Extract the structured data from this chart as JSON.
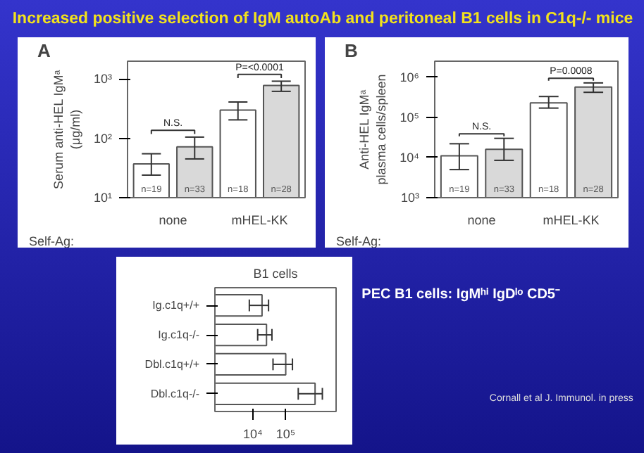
{
  "chart_data": [
    {
      "type": "other",
      "title": "Increased positive selection of IgM autoAb and peritoneal B1 cells in C1q-/- mice",
      "annotations": [
        "PEC B1 cells: IgMʰⁱ IgDˡᵒ CD5⁻",
        "Cornall et al J. Immunol. in press"
      ]
    },
    {
      "type": "bar",
      "ylabel": "Serum anti-HEL IgMᵃ\n(μg/ml)",
      "categories": [
        null,
        null,
        null,
        null
      ],
      "values": [
        37,
        72,
        300,
        780
      ],
      "errors": [
        [
          24,
          55
        ],
        [
          45,
          105
        ],
        [
          205,
          410
        ],
        [
          620,
          920
        ]
      ],
      "colors": [
        "#ffffff",
        "#d9d9d9",
        "#ffffff",
        "#d9d9d9"
      ],
      "log": true,
      "ylim": [
        10,
        2000
      ],
      "yticks": [
        {
          "value": 10,
          "label": "10¹"
        },
        {
          "value": 100,
          "label": "10²"
        },
        {
          "value": 1000,
          "label": "10³"
        }
      ],
      "annotations": [
        "N.S.",
        "P=<0.0001",
        "n=19",
        "n=33",
        "n=18",
        "n=28",
        "Self-Ag:",
        "none",
        "mHEL-KK",
        "A"
      ]
    },
    {
      "type": "bar",
      "ylabel": "Anti-HEL IgMᵃ\nplasma cells/spleen",
      "categories": [
        null,
        null,
        null,
        null
      ],
      "values": [
        11000,
        16000,
        230000,
        570000
      ],
      "errors": [
        [
          5000,
          22000
        ],
        [
          8500,
          30000
        ],
        [
          170000,
          330000
        ],
        [
          420000,
          720000
        ]
      ],
      "colors": [
        "#ffffff",
        "#d9d9d9",
        "#ffffff",
        "#d9d9d9"
      ],
      "log": true,
      "ylim": [
        1000,
        2500000
      ],
      "yticks": [
        {
          "value": 1000,
          "label": "10³"
        },
        {
          "value": 10000,
          "label": "10⁴"
        },
        {
          "value": 100000,
          "label": "10⁵"
        },
        {
          "value": 1000000,
          "label": "10⁶"
        }
      ],
      "annotations": [
        "N.S.",
        "P=0.0008",
        "n=19",
        "n=33",
        "n=18",
        "n=28",
        "Self-Ag:",
        "none",
        "mHEL-KK",
        "B"
      ]
    },
    {
      "type": "bar",
      "orientation": "horizontal",
      "title": "B1 cells",
      "categories": [
        "Ig.c1q+/+",
        "Ig.c1q-/-",
        "Dbl.c1q+/+",
        "Dbl.c1q-/-"
      ],
      "values": [
        19000,
        26000,
        100000,
        780000
      ],
      "errors": [
        [
          7800,
          30000
        ],
        [
          14000,
          38000
        ],
        [
          41000,
          160000
        ],
        [
          240000,
          1300000
        ]
      ],
      "color": "#ffffff",
      "log": "x",
      "xlim": [
        700,
        3400000
      ],
      "xticks": [
        {
          "value": 10000,
          "label": "10⁴"
        },
        {
          "value": 100000,
          "label": "10⁵"
        }
      ]
    }
  ]
}
